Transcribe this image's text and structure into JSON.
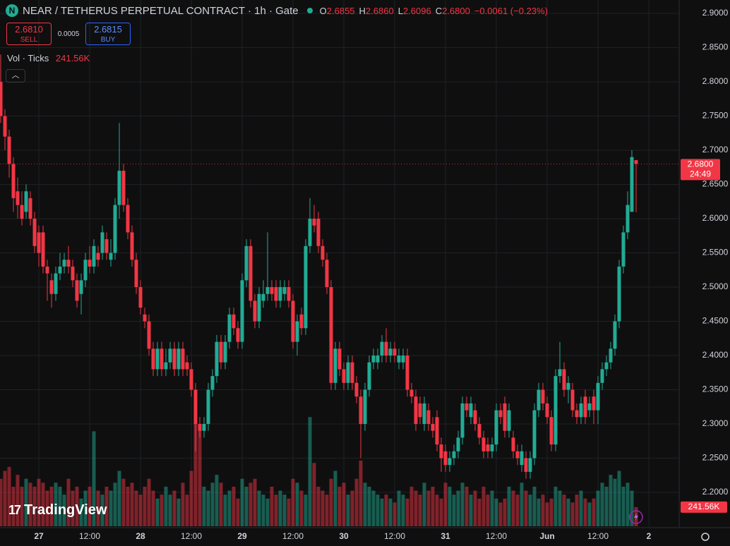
{
  "chart_data": {
    "type": "candlestick",
    "title": "NEAR / TETHERUS PERPETUAL CONTRACT · 1h · Gate",
    "ohlc_legend": [
      {
        "label": "O",
        "value": "2.6855"
      },
      {
        "label": "H",
        "value": "2.6860"
      },
      {
        "label": "L",
        "value": "2.6096"
      },
      {
        "label": "C",
        "value": "2.6800"
      }
    ],
    "change": "−0.0061 (−0.23%)",
    "sell": {
      "price": "2.6810",
      "label": "SELL"
    },
    "spread": "0.0005",
    "buy": {
      "price": "2.6815",
      "label": "BUY"
    },
    "volume_legend": {
      "label": "Vol · Ticks",
      "value": "241.56K"
    },
    "last_price_label": "2.6800",
    "countdown": "24:49",
    "volume_label": "241.56K",
    "watermark": "TradingView",
    "up_color": "#22ab94",
    "down_color": "#f23645",
    "categories": [
      null,
      null,
      null,
      null,
      null,
      null,
      null,
      null,
      null,
      "27",
      null,
      null,
      null,
      null,
      null,
      null,
      null,
      null,
      null,
      null,
      null,
      "12:00",
      null,
      null,
      null,
      null,
      null,
      null,
      null,
      null,
      null,
      null,
      null,
      "28",
      null,
      null,
      null,
      null,
      null,
      null,
      null,
      null,
      null,
      null,
      null,
      "12:00",
      null,
      null,
      null,
      null,
      null,
      null,
      null,
      null,
      null,
      null,
      null,
      "29",
      null,
      null,
      null,
      null,
      null,
      null,
      null,
      null,
      null,
      null,
      null,
      "12:00",
      null,
      null,
      null,
      null,
      null,
      null,
      null,
      null,
      null,
      null,
      null,
      "30",
      null,
      null,
      null,
      null,
      null,
      null,
      null,
      null,
      null,
      null,
      null,
      "12:00",
      null,
      null,
      null,
      null,
      null,
      null,
      null,
      null,
      null,
      null,
      null,
      "31",
      null,
      null,
      null,
      null,
      null,
      null,
      null,
      null,
      null,
      null,
      null,
      "12:00",
      null,
      null,
      null,
      null,
      null,
      null,
      null,
      null,
      null,
      null,
      null,
      "Jun",
      null,
      null,
      null,
      null,
      null,
      null,
      null,
      null,
      null,
      null,
      null,
      "12:00",
      null,
      null,
      null,
      null,
      null,
      null,
      null,
      null,
      null,
      null,
      null,
      "2"
    ],
    "open": [
      2.8,
      2.75,
      2.72,
      2.68,
      2.64,
      2.62,
      2.61,
      2.63,
      2.6,
      2.58,
      2.58,
      2.53,
      2.51,
      2.49,
      2.52,
      2.53,
      2.54,
      2.53,
      2.51,
      2.49,
      2.51,
      2.54,
      2.53,
      2.55,
      2.55,
      2.57,
      2.54,
      2.55,
      2.62,
      2.67,
      2.62,
      2.58,
      2.54,
      2.5,
      2.46,
      2.45,
      2.41,
      2.38,
      2.41,
      2.38,
      2.39,
      2.41,
      2.38,
      2.41,
      2.39,
      2.38,
      2.35,
      2.3,
      2.29,
      2.3,
      2.35,
      2.37,
      2.42,
      2.39,
      2.42,
      2.46,
      2.44,
      2.42,
      2.51,
      2.56,
      2.48,
      2.45,
      2.48,
      2.49,
      2.5,
      2.5,
      2.48,
      2.49,
      2.5,
      2.48,
      2.42,
      2.46,
      2.44,
      2.56,
      2.6,
      2.6,
      2.56,
      2.54,
      2.5,
      2.36,
      2.41,
      2.38,
      2.36,
      2.39,
      2.36,
      2.34,
      2.3,
      2.35,
      2.39,
      2.39,
      2.4,
      2.42,
      2.4,
      2.41,
      2.39,
      2.39,
      2.4,
      2.35,
      2.34,
      2.33,
      2.3,
      2.32,
      2.3,
      2.31,
      2.27,
      2.26,
      2.24,
      2.25,
      2.26,
      2.28,
      2.33,
      2.31,
      2.32,
      2.3,
      2.28,
      2.27,
      2.26,
      2.27,
      2.32,
      2.33,
      2.29,
      2.28,
      2.26,
      2.24,
      2.25,
      2.23,
      2.25,
      2.32,
      2.35,
      2.33,
      2.31,
      2.27,
      2.37,
      2.38,
      2.35,
      2.35,
      2.32,
      2.31,
      2.34,
      2.32,
      2.34,
      2.32,
      2.36,
      2.38,
      2.39,
      2.41,
      2.45,
      2.53,
      2.58,
      2.61,
      2.6855,
      null,
      null,
      null
    ],
    "high": [
      2.84,
      2.76,
      2.73,
      2.69,
      2.66,
      2.64,
      2.65,
      2.64,
      2.61,
      2.59,
      2.59,
      2.54,
      2.52,
      2.53,
      2.55,
      2.55,
      2.56,
      2.54,
      2.52,
      2.52,
      2.55,
      2.56,
      2.57,
      2.56,
      2.59,
      2.58,
      2.57,
      2.63,
      2.74,
      2.68,
      2.63,
      2.59,
      2.55,
      2.51,
      2.47,
      2.46,
      2.42,
      2.42,
      2.42,
      2.41,
      2.42,
      2.42,
      2.42,
      2.42,
      2.4,
      2.39,
      2.36,
      2.31,
      2.31,
      2.36,
      2.38,
      2.43,
      2.43,
      2.43,
      2.47,
      2.47,
      2.45,
      2.52,
      2.57,
      2.57,
      2.49,
      2.5,
      2.51,
      2.58,
      2.51,
      2.51,
      2.51,
      2.51,
      2.51,
      2.49,
      2.46,
      2.47,
      2.57,
      2.63,
      2.62,
      2.61,
      2.57,
      2.55,
      2.51,
      2.42,
      2.42,
      2.39,
      2.4,
      2.4,
      2.37,
      2.35,
      2.36,
      2.4,
      2.41,
      2.41,
      2.43,
      2.44,
      2.42,
      2.42,
      2.41,
      2.41,
      2.41,
      2.36,
      2.35,
      2.34,
      2.34,
      2.33,
      2.31,
      2.32,
      2.28,
      2.27,
      2.26,
      2.27,
      2.29,
      2.34,
      2.34,
      2.34,
      2.33,
      2.31,
      2.29,
      2.28,
      2.28,
      2.33,
      2.33,
      2.34,
      2.33,
      2.29,
      2.27,
      2.27,
      2.26,
      2.26,
      2.33,
      2.36,
      2.36,
      2.34,
      2.32,
      2.38,
      2.42,
      2.39,
      2.37,
      2.36,
      2.33,
      2.34,
      2.35,
      2.34,
      2.35,
      2.37,
      2.39,
      2.4,
      2.42,
      2.46,
      2.54,
      2.59,
      2.64,
      2.7,
      2.686,
      null,
      null,
      null
    ],
    "low": [
      2.74,
      2.7,
      2.66,
      2.61,
      2.6,
      2.59,
      2.6,
      2.59,
      2.55,
      2.53,
      2.52,
      2.48,
      2.47,
      2.48,
      2.51,
      2.52,
      2.52,
      2.5,
      2.47,
      2.46,
      2.5,
      2.52,
      2.52,
      2.53,
      2.54,
      2.54,
      2.53,
      2.54,
      2.6,
      2.61,
      2.57,
      2.53,
      2.49,
      2.46,
      2.44,
      2.4,
      2.37,
      2.37,
      2.37,
      2.37,
      2.38,
      2.37,
      2.37,
      2.37,
      2.37,
      2.34,
      2.26,
      2.28,
      2.28,
      2.29,
      2.34,
      2.36,
      2.38,
      2.38,
      2.41,
      2.43,
      2.41,
      2.41,
      2.5,
      2.47,
      2.44,
      2.44,
      2.47,
      2.48,
      2.48,
      2.47,
      2.47,
      2.48,
      2.47,
      2.41,
      2.4,
      2.43,
      2.43,
      2.55,
      2.58,
      2.55,
      2.53,
      2.49,
      2.35,
      2.35,
      2.37,
      2.35,
      2.35,
      2.35,
      2.33,
      2.25,
      2.29,
      2.34,
      2.38,
      2.38,
      2.39,
      2.39,
      2.39,
      2.39,
      2.38,
      2.38,
      2.34,
      2.33,
      2.29,
      2.3,
      2.29,
      2.29,
      2.28,
      2.26,
      2.23,
      2.23,
      2.23,
      2.24,
      2.25,
      2.27,
      2.31,
      2.3,
      2.29,
      2.27,
      2.25,
      2.25,
      2.25,
      2.26,
      2.3,
      2.28,
      2.28,
      2.25,
      2.24,
      2.23,
      2.22,
      2.22,
      2.24,
      2.31,
      2.32,
      2.3,
      2.26,
      2.26,
      2.36,
      2.34,
      2.33,
      2.31,
      2.3,
      2.3,
      2.3,
      2.31,
      2.3,
      2.3,
      2.35,
      2.37,
      2.38,
      2.4,
      2.44,
      2.52,
      2.57,
      2.61,
      2.6096,
      null,
      null,
      null
    ],
    "close": [
      2.75,
      2.72,
      2.68,
      2.63,
      2.62,
      2.6,
      2.64,
      2.6,
      2.56,
      2.55,
      2.53,
      2.52,
      2.49,
      2.52,
      2.53,
      2.54,
      2.53,
      2.51,
      2.48,
      2.51,
      2.54,
      2.53,
      2.56,
      2.54,
      2.58,
      2.55,
      2.55,
      2.62,
      2.67,
      2.62,
      2.58,
      2.54,
      2.5,
      2.47,
      2.45,
      2.41,
      2.38,
      2.41,
      2.38,
      2.39,
      2.41,
      2.38,
      2.41,
      2.38,
      2.38,
      2.35,
      2.3,
      2.29,
      2.3,
      2.35,
      2.37,
      2.42,
      2.39,
      2.42,
      2.46,
      2.44,
      2.42,
      2.51,
      2.56,
      2.48,
      2.45,
      2.49,
      2.49,
      2.5,
      2.49,
      2.48,
      2.5,
      2.5,
      2.48,
      2.42,
      2.45,
      2.44,
      2.56,
      2.6,
      2.59,
      2.56,
      2.54,
      2.5,
      2.36,
      2.41,
      2.38,
      2.36,
      2.39,
      2.36,
      2.34,
      2.3,
      2.35,
      2.39,
      2.4,
      2.4,
      2.42,
      2.4,
      2.41,
      2.4,
      2.4,
      2.4,
      2.35,
      2.34,
      2.3,
      2.31,
      2.33,
      2.3,
      2.29,
      2.27,
      2.25,
      2.24,
      2.25,
      2.26,
      2.28,
      2.33,
      2.32,
      2.33,
      2.3,
      2.28,
      2.26,
      2.26,
      2.27,
      2.32,
      2.31,
      2.29,
      2.32,
      2.26,
      2.25,
      2.26,
      2.23,
      2.25,
      2.32,
      2.35,
      2.33,
      2.31,
      2.27,
      2.37,
      2.38,
      2.35,
      2.36,
      2.32,
      2.31,
      2.33,
      2.31,
      2.33,
      2.32,
      2.36,
      2.38,
      2.39,
      2.41,
      2.45,
      2.53,
      2.58,
      2.62,
      2.69,
      2.68,
      null,
      null,
      null
    ],
    "volume": [
      600,
      700,
      750,
      500,
      650,
      500,
      600,
      550,
      500,
      600,
      550,
      450,
      500,
      550,
      500,
      400,
      600,
      450,
      500,
      350,
      450,
      500,
      1200,
      450,
      400,
      500,
      450,
      550,
      700,
      600,
      500,
      550,
      450,
      400,
      500,
      600,
      450,
      350,
      400,
      500,
      400,
      450,
      350,
      550,
      400,
      700,
      1380,
      1250,
      500,
      450,
      550,
      650,
      550,
      400,
      450,
      500,
      350,
      600,
      500,
      550,
      600,
      450,
      400,
      350,
      500,
      400,
      450,
      400,
      350,
      600,
      550,
      450,
      400,
      1380,
      800,
      500,
      450,
      400,
      600,
      700,
      500,
      550,
      400,
      450,
      600,
      830,
      550,
      500,
      450,
      400,
      350,
      400,
      350,
      300,
      450,
      400,
      350,
      500,
      450,
      400,
      550,
      450,
      500,
      400,
      350,
      550,
      500,
      400,
      450,
      550,
      500,
      400,
      450,
      350,
      500,
      400,
      450,
      350,
      300,
      350,
      500,
      450,
      400,
      550,
      450,
      400,
      500,
      350,
      400,
      300,
      350,
      500,
      450,
      400,
      350,
      300,
      400,
      450,
      350,
      300,
      350,
      450,
      550,
      500,
      650,
      600,
      700,
      500,
      550,
      450,
      241.56,
      null,
      null,
      null
    ],
    "ylim": [
      2.1505,
      2.9196
    ],
    "vol_ylim": [
      0,
      6650
    ],
    "yticks": [
      {
        "value": 2.2,
        "label": "2.2000"
      },
      {
        "value": 2.25,
        "label": "2.2500"
      },
      {
        "value": 2.3,
        "label": "2.3000"
      },
      {
        "value": 2.35,
        "label": "2.3500"
      },
      {
        "value": 2.4,
        "label": "2.4000"
      },
      {
        "value": 2.45,
        "label": "2.4500"
      },
      {
        "value": 2.5,
        "label": "2.5000"
      },
      {
        "value": 2.55,
        "label": "2.5500"
      },
      {
        "value": 2.6,
        "label": "2.6000"
      },
      {
        "value": 2.65,
        "label": "2.6500"
      },
      {
        "value": 2.7,
        "label": "2.7000"
      },
      {
        "value": 2.75,
        "label": "2.7500"
      },
      {
        "value": 2.8,
        "label": "2.8000"
      },
      {
        "value": 2.85,
        "label": "2.8500"
      },
      {
        "value": 2.9,
        "label": "2.9000"
      }
    ],
    "grid": true
  }
}
